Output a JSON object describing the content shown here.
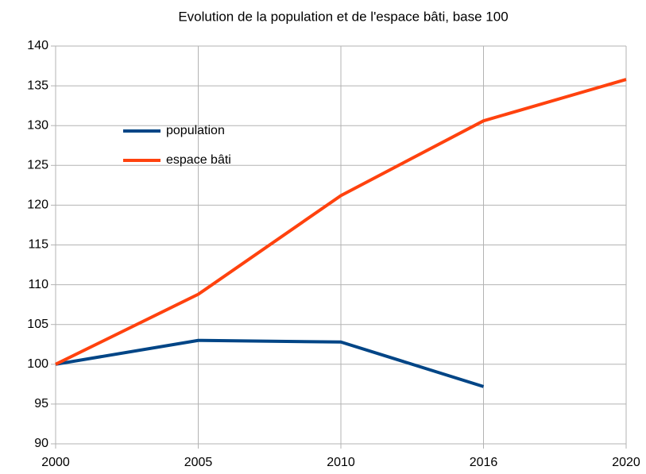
{
  "chart_data": {
    "type": "line",
    "title": "Evolution de la population et de l'espace bâti, base 100",
    "categories": [
      "2000",
      "2005",
      "2010",
      "2016",
      "2020"
    ],
    "series": [
      {
        "name": "population",
        "color": "#004586",
        "values": [
          100,
          103,
          102.8,
          97.2,
          null
        ]
      },
      {
        "name": "espace bâti",
        "color": "#ff420e",
        "values": [
          100,
          108.8,
          121.2,
          130.6,
          135.8
        ]
      }
    ],
    "ylim": [
      90,
      140
    ],
    "yticks": [
      90,
      95,
      100,
      105,
      110,
      115,
      120,
      125,
      130,
      135,
      140
    ],
    "grid": true,
    "legend": "upper left"
  }
}
